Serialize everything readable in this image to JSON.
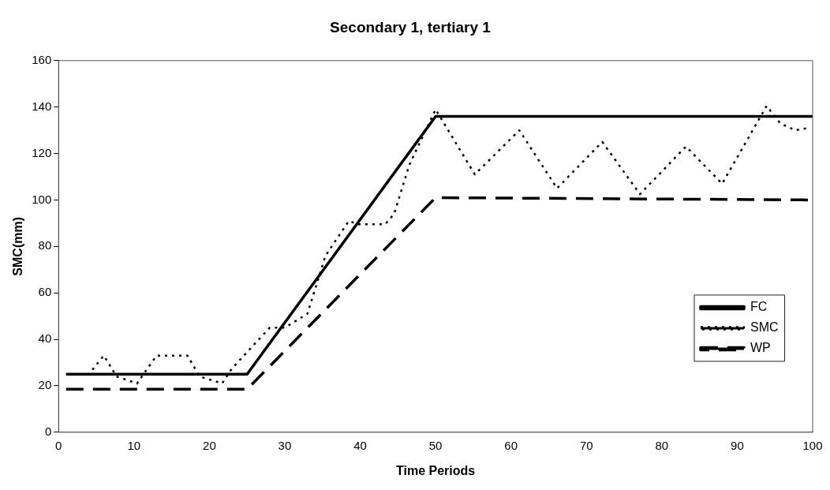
{
  "chart_data": {
    "type": "line",
    "title": "Secondary 1, tertiary 1",
    "xlabel": "Time Periods",
    "ylabel": "SMC(mm)",
    "xlim": [
      0,
      100
    ],
    "xticks": [
      0,
      10,
      20,
      30,
      40,
      50,
      60,
      70,
      80,
      90,
      100
    ],
    "ylim": [
      0,
      160
    ],
    "yticks": [
      0,
      20,
      40,
      60,
      80,
      100,
      120,
      140,
      160
    ],
    "grid": false,
    "legend": "right",
    "marker": "none",
    "series": [
      {
        "name": "FC",
        "color": "#000000",
        "line_style": "solid",
        "x": [
          1,
          25,
          50,
          100
        ],
        "values": [
          25,
          25,
          136,
          136
        ]
      },
      {
        "name": "SMC",
        "color": "#000000",
        "line_style": "dotted",
        "x": [
          1,
          4,
          6,
          7.7,
          10.4,
          13,
          17.1,
          18.7,
          21.7,
          23,
          28,
          30,
          33,
          35.4,
          38.5,
          39.7,
          43.3,
          44.5,
          46.5,
          50,
          55.2,
          61.1,
          66.1,
          72.1,
          77.1,
          83.2,
          88,
          93.9,
          95.7,
          97.7,
          99.4
        ],
        "values": [
          25,
          25,
          33,
          24,
          21,
          33,
          33,
          24,
          21,
          27.5,
          45,
          45,
          51,
          76,
          91,
          89.5,
          89.5,
          94,
          115,
          139,
          111,
          130,
          105,
          125,
          102.5,
          123,
          107,
          140.5,
          133,
          130,
          131
        ]
      },
      {
        "name": "WP",
        "color": "#000000",
        "line_style": "dashed",
        "x": [
          1,
          25,
          50,
          100
        ],
        "values": [
          18.5,
          18.5,
          101,
          100
        ]
      }
    ]
  }
}
